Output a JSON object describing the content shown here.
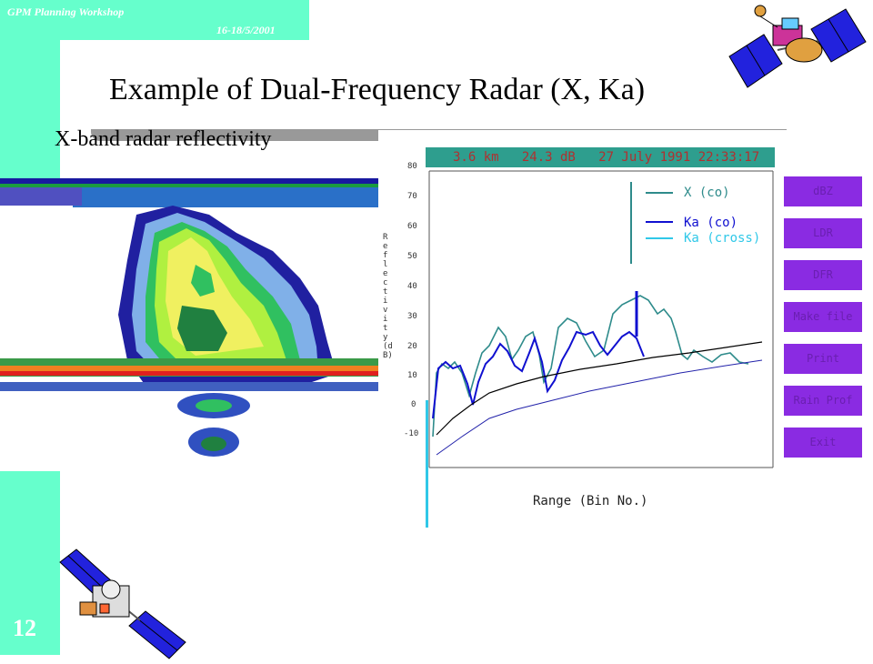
{
  "header": {
    "workshop": "GPM Planning Workshop",
    "date": "16-18/5/2001",
    "page_number": "12"
  },
  "slide": {
    "title": "Example of Dual-Frequency Radar (X, Ka)",
    "subtitle": "X-band radar reflectivity"
  },
  "plot_window": {
    "status_bar": "3.6 km   24.3 dB   27 July 1991 22:33:17",
    "ylabel": "Reflectivity (dB)",
    "xlabel": "Range (Bin No.)",
    "y_ticks": [
      "80",
      "70",
      "60",
      "50",
      "40",
      "30",
      "20",
      "10",
      "0",
      "-10"
    ],
    "legend": [
      {
        "label": "X (co)",
        "color": "#2e8b8b"
      },
      {
        "label": "Ka (co)",
        "color": "#1010d0"
      },
      {
        "label": "Ka (cross)",
        "color": "#30c8e8"
      }
    ]
  },
  "menu": {
    "buttons": [
      "dBZ",
      "LDR",
      "DFR",
      "Make file",
      "Print",
      "Rain Prof",
      "Exit"
    ]
  },
  "colors": {
    "accent": "#66ffcc",
    "button": "#8a2be2",
    "status_bar": "#2e9e8e"
  },
  "icons": [
    "satellite-icon",
    "satellite-icon"
  ]
}
